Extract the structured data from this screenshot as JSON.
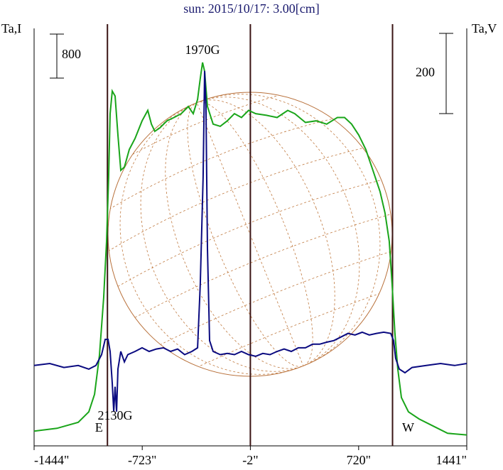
{
  "chart_data": {
    "type": "line",
    "title": "sun: 2015/10/17: 3.00[cm]",
    "y_label": "Ta,I",
    "y2_label": "Ta,V",
    "xlim": [
      -1444,
      1441
    ],
    "xticks": [
      {
        "value": -1444,
        "label": "-1444\""
      },
      {
        "value": -723,
        "label": "-723\""
      },
      {
        "value": -2,
        "label": "-2\""
      },
      {
        "value": 720,
        "label": "720\""
      },
      {
        "value": 1441,
        "label": "1441\""
      }
    ],
    "ylim": [
      0,
      7550
    ],
    "y2lim": [
      -195,
      840
    ],
    "vlines": [
      -955,
      -2,
      946
    ],
    "vline_color": "#3a1414",
    "series": [
      {
        "color": "#1aa51a",
        "x": [
          -1444,
          -1292,
          -1150,
          -1079,
          -1041,
          -1008,
          -980,
          -961,
          -947,
          -937,
          -923,
          -904,
          -885,
          -866,
          -842,
          -809,
          -771,
          -724,
          -686,
          -662,
          -639,
          -606,
          -558,
          -511,
          -463,
          -416,
          -383,
          -354,
          -336,
          -321,
          -307,
          -288,
          -250,
          -203,
          -156,
          -108,
          -61,
          -14,
          34,
          105,
          176,
          247,
          294,
          365,
          436,
          507,
          578,
          626,
          673,
          721,
          768,
          815,
          863,
          896,
          924,
          943,
          962,
          981,
          1005,
          1052,
          1123,
          1218,
          1313,
          1441
        ],
        "values": [
          230,
          280,
          390,
          580,
          900,
          1610,
          2650,
          3680,
          4840,
          6000,
          6410,
          6320,
          5610,
          4970,
          5030,
          5350,
          5550,
          5870,
          6060,
          5810,
          5680,
          5740,
          5870,
          5930,
          6000,
          6130,
          6000,
          6260,
          6640,
          6930,
          6770,
          6130,
          5810,
          5770,
          5870,
          6000,
          5930,
          6060,
          6000,
          5970,
          5930,
          6060,
          6000,
          5840,
          5870,
          5810,
          5930,
          5930,
          5810,
          5610,
          5350,
          4970,
          4580,
          4190,
          3680,
          2900,
          2000,
          1360,
          840,
          580,
          450,
          320,
          190,
          160
        ]
      },
      {
        "color": "#0a0a80",
        "axis": "y2",
        "x": [
          -1444,
          -1340,
          -1245,
          -1150,
          -1079,
          -1032,
          -994,
          -970,
          -951,
          -937,
          -923,
          -913,
          -904,
          -894,
          -885,
          -866,
          -842,
          -819,
          -771,
          -724,
          -677,
          -629,
          -582,
          -534,
          -487,
          -440,
          -392,
          -354,
          -336,
          -317,
          -307,
          -298,
          -288,
          -274,
          -250,
          -203,
          -156,
          -108,
          -61,
          -14,
          34,
          81,
          129,
          176,
          223,
          271,
          318,
          365,
          413,
          460,
          507,
          555,
          602,
          649,
          696,
          744,
          791,
          839,
          887,
          934,
          953,
          967,
          991,
          1029,
          1076,
          1171,
          1266,
          1360,
          1441
        ],
        "values": [
          0,
          5,
          -5,
          0,
          -9,
          0,
          27,
          65,
          65,
          35,
          -44,
          -115,
          -53,
          -115,
          -9,
          35,
          9,
          27,
          35,
          44,
          35,
          41,
          44,
          35,
          41,
          27,
          35,
          44,
          203,
          469,
          734,
          646,
          292,
          62,
          35,
          27,
          30,
          27,
          35,
          27,
          23,
          30,
          27,
          35,
          41,
          35,
          44,
          44,
          53,
          53,
          58,
          62,
          71,
          80,
          76,
          83,
          76,
          80,
          83,
          80,
          62,
          18,
          -9,
          -18,
          -5,
          0,
          5,
          0,
          5
        ]
      }
    ],
    "annotations": [
      {
        "text": "1970G",
        "x": -321
      },
      {
        "text": "2130G",
        "x": -904
      },
      {
        "text": "E",
        "x": -955
      },
      {
        "text": "W",
        "x": 946
      }
    ],
    "scale_bars": [
      {
        "value": 800,
        "axis": "y"
      },
      {
        "value": 200,
        "axis": "y2"
      }
    ]
  }
}
